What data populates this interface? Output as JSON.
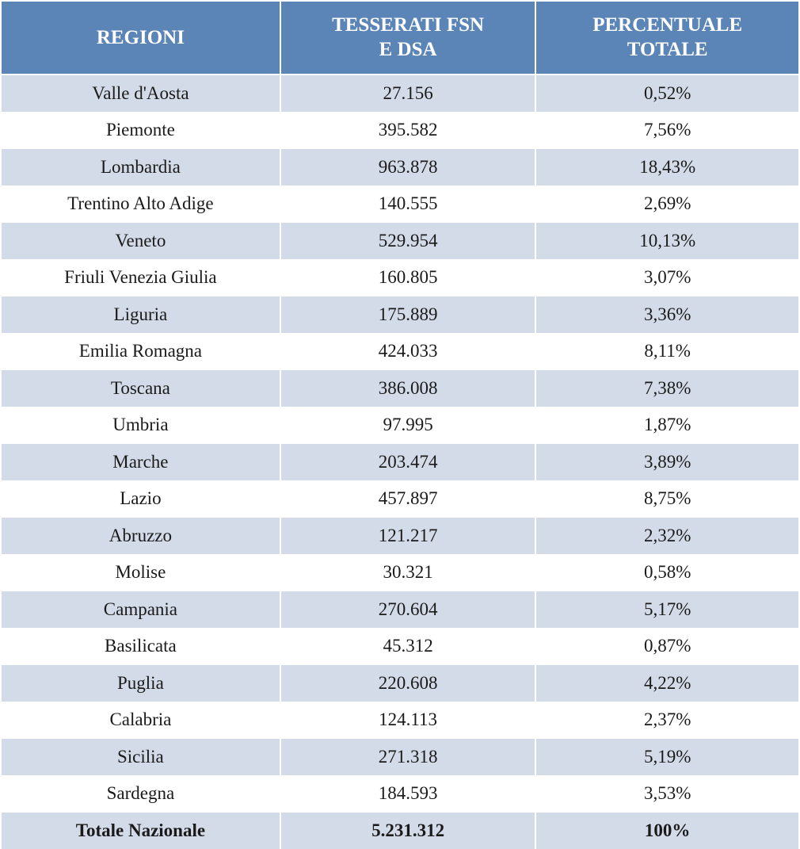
{
  "table": {
    "type": "table",
    "header_bg": "#5b85b6",
    "header_text_color": "#ffffff",
    "row_stripe_color": "#d4dbe8",
    "row_bg_color": "#ffffff",
    "border_color": "#ffffff",
    "text_color": "#1a1a1a",
    "header_fontsize_pt": 19,
    "body_fontsize_pt": 17,
    "font_family": "Palatino-style serif",
    "col_widths_pct": [
      35,
      32,
      33
    ],
    "header_line_break_cols": [
      1,
      2
    ],
    "columns": [
      "REGIONI",
      "TESSERATI FSN E DSA",
      "PERCENTUALE TOTALE"
    ],
    "rows": [
      {
        "regione": "Valle d'Aosta",
        "tesserati": "27.156",
        "percentuale": "0,52%"
      },
      {
        "regione": "Piemonte",
        "tesserati": "395.582",
        "percentuale": "7,56%"
      },
      {
        "regione": "Lombardia",
        "tesserati": "963.878",
        "percentuale": "18,43%"
      },
      {
        "regione": "Trentino Alto Adige",
        "tesserati": "140.555",
        "percentuale": "2,69%"
      },
      {
        "regione": "Veneto",
        "tesserati": "529.954",
        "percentuale": "10,13%"
      },
      {
        "regione": "Friuli Venezia Giulia",
        "tesserati": "160.805",
        "percentuale": "3,07%"
      },
      {
        "regione": "Liguria",
        "tesserati": "175.889",
        "percentuale": "3,36%"
      },
      {
        "regione": "Emilia Romagna",
        "tesserati": "424.033",
        "percentuale": "8,11%"
      },
      {
        "regione": "Toscana",
        "tesserati": "386.008",
        "percentuale": "7,38%"
      },
      {
        "regione": "Umbria",
        "tesserati": "97.995",
        "percentuale": "1,87%"
      },
      {
        "regione": "Marche",
        "tesserati": "203.474",
        "percentuale": "3,89%"
      },
      {
        "regione": "Lazio",
        "tesserati": "457.897",
        "percentuale": "8,75%"
      },
      {
        "regione": "Abruzzo",
        "tesserati": "121.217",
        "percentuale": "2,32%"
      },
      {
        "regione": "Molise",
        "tesserati": "30.321",
        "percentuale": "0,58%"
      },
      {
        "regione": "Campania",
        "tesserati": "270.604",
        "percentuale": "5,17%"
      },
      {
        "regione": "Basilicata",
        "tesserati": "45.312",
        "percentuale": "0,87%"
      },
      {
        "regione": "Puglia",
        "tesserati": "220.608",
        "percentuale": "4,22%"
      },
      {
        "regione": "Calabria",
        "tesserati": "124.113",
        "percentuale": "2,37%"
      },
      {
        "regione": "Sicilia",
        "tesserati": "271.318",
        "percentuale": "5,19%"
      },
      {
        "regione": "Sardegna",
        "tesserati": "184.593",
        "percentuale": "3,53%"
      }
    ],
    "total_row": {
      "regione": "Totale Nazionale",
      "tesserati": "5.231.312",
      "percentuale": "100%"
    }
  }
}
